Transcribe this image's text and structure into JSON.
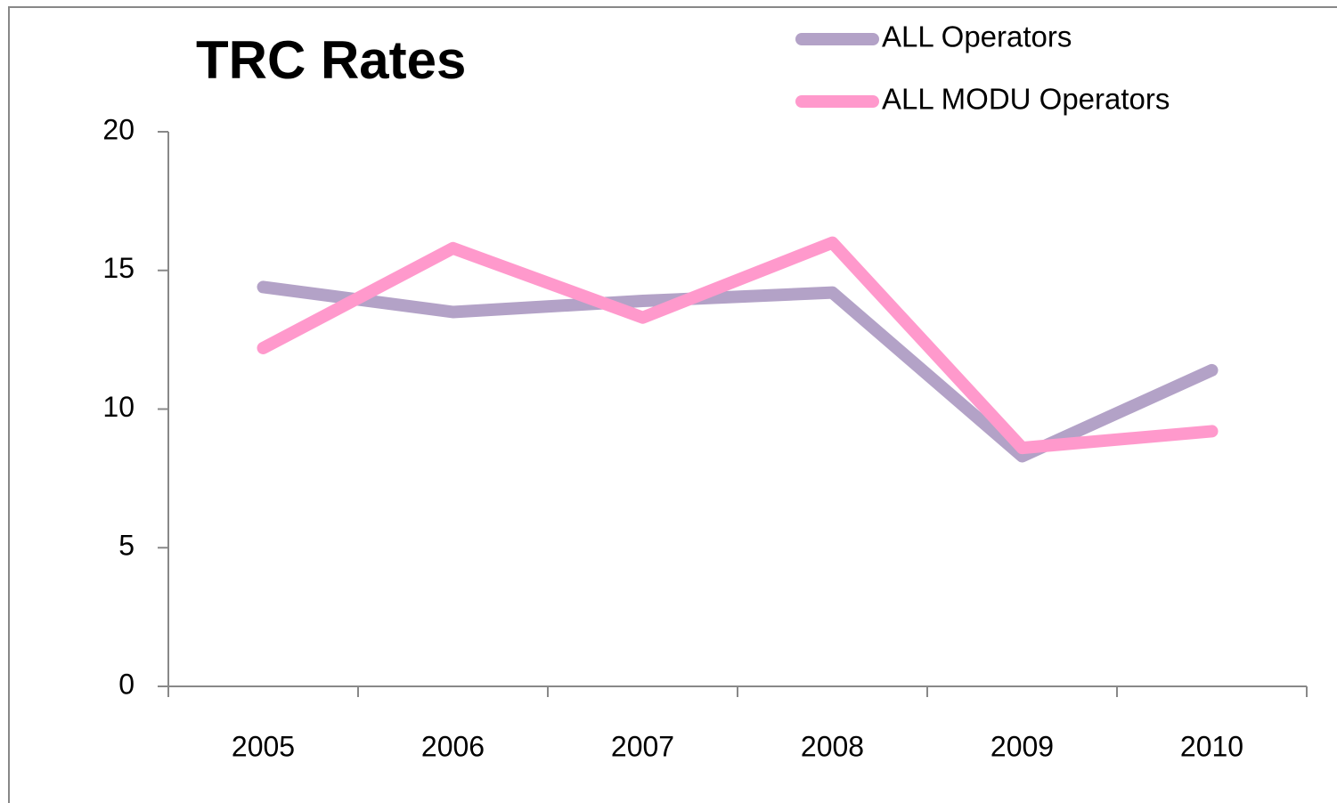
{
  "chart_data": {
    "type": "line",
    "title": "TRC Rates",
    "categories": [
      "2005",
      "2006",
      "2007",
      "2008",
      "2009",
      "2010"
    ],
    "series": [
      {
        "name": "ALL Operators",
        "color": "#b3a2c7",
        "values": [
          14.4,
          13.5,
          13.9,
          14.2,
          8.3,
          11.4
        ]
      },
      {
        "name": "ALL MODU Operators",
        "color": "#ff99cc",
        "values": [
          12.2,
          15.8,
          13.3,
          16.0,
          8.6,
          9.2
        ]
      }
    ],
    "ylim": [
      0,
      20
    ],
    "yticks": [
      0,
      5,
      10,
      15,
      20
    ],
    "grid": false,
    "legend": "top-right"
  }
}
